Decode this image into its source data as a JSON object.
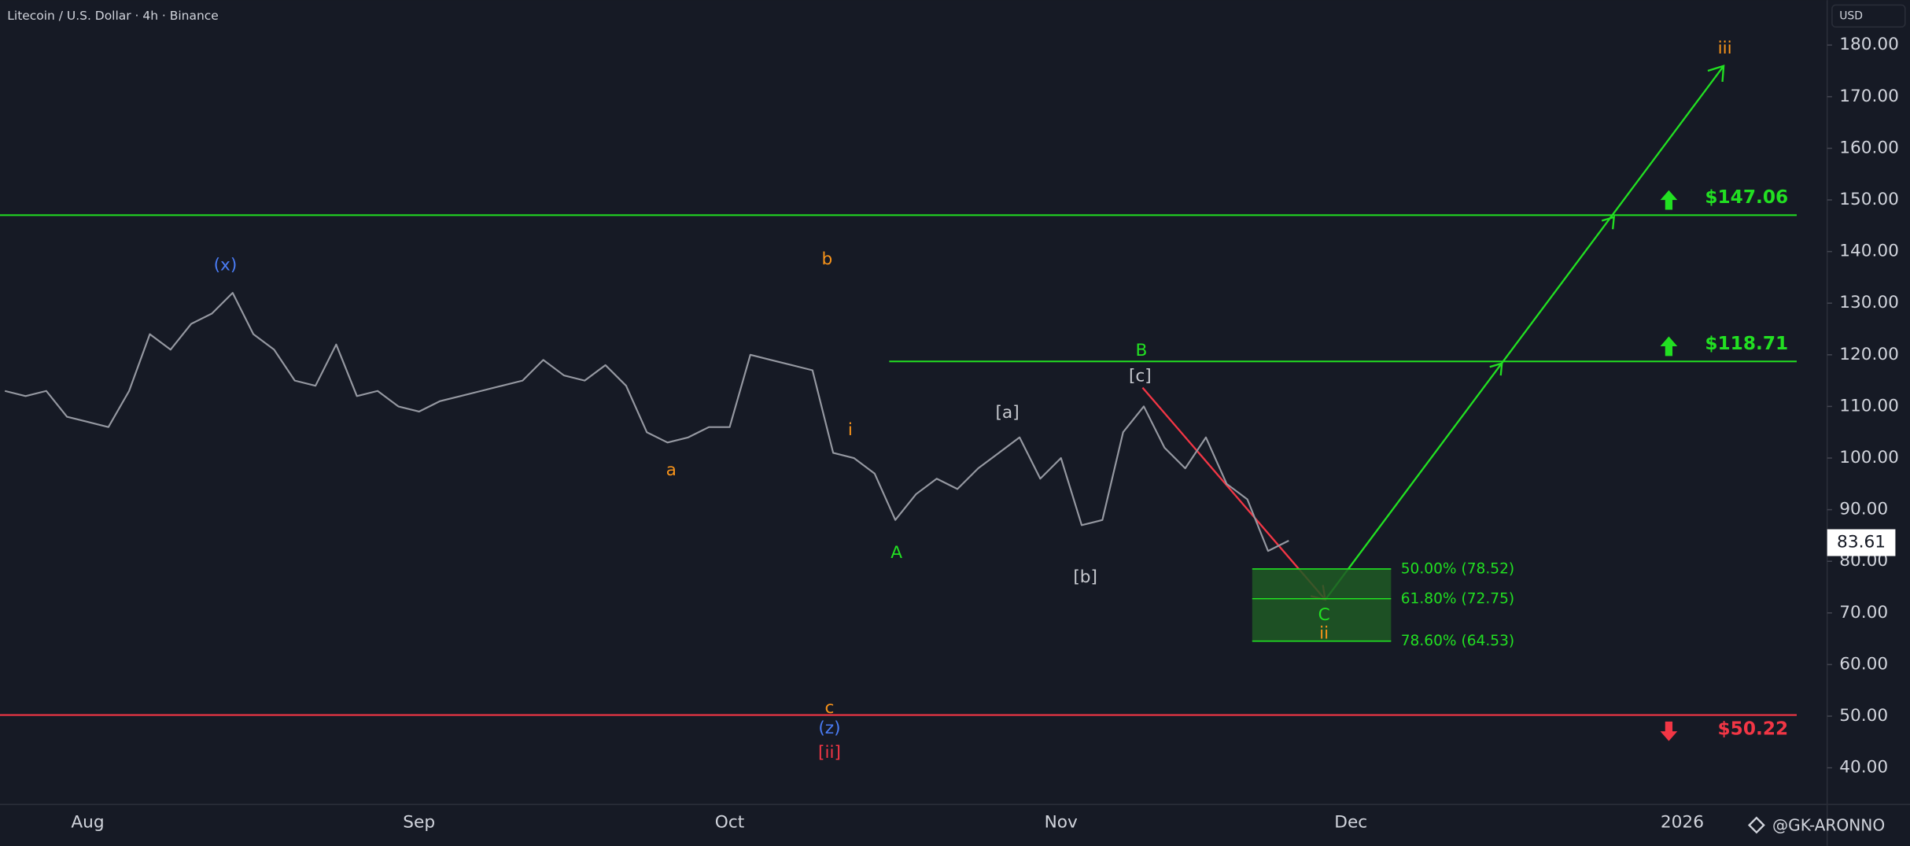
{
  "chart_data": {
    "type": "line",
    "title": "Litecoin / U.S. Dollar · 4h · Binance",
    "currency": "USD",
    "watermark": "@GK-ARONNO",
    "categories": [
      null,
      null,
      null,
      null,
      "Aug",
      null,
      null,
      null,
      null,
      null,
      null,
      null,
      null,
      null,
      null,
      null,
      null,
      null,
      null,
      null,
      "Sep",
      null,
      null,
      null,
      null,
      null,
      null,
      null,
      null,
      null,
      null,
      null,
      null,
      null,
      null,
      "Oct",
      null,
      null,
      null,
      null,
      null,
      null,
      null,
      null,
      null,
      null,
      null,
      null,
      null,
      null,
      null,
      "Nov",
      null,
      null,
      null,
      null,
      null,
      null,
      null,
      null,
      null,
      null,
      null,
      null,
      null,
      "Dec",
      null,
      null,
      null,
      null,
      null,
      null,
      null,
      null,
      null,
      null,
      null,
      null,
      null,
      null,
      null,
      "2026",
      null,
      null,
      null,
      null,
      null,
      null
    ],
    "values": [
      113,
      112,
      113,
      108,
      107,
      106,
      113,
      124,
      121,
      126,
      128,
      132,
      124,
      121,
      115,
      114,
      122,
      112,
      113,
      110,
      109,
      111,
      112,
      113,
      114,
      115,
      119,
      116,
      115,
      118,
      114,
      105,
      103,
      104,
      106,
      106,
      120,
      119,
      118,
      117,
      101,
      100,
      97,
      88,
      93,
      96,
      94,
      98,
      101,
      104,
      96,
      100,
      87,
      88,
      105,
      110,
      102,
      98,
      104,
      95,
      92,
      82,
      84,
      null,
      null,
      null,
      null,
      null,
      null,
      null,
      null,
      null,
      null,
      null,
      null,
      null,
      null,
      null,
      null,
      null,
      null,
      null,
      null,
      null,
      null,
      null,
      null,
      null
    ],
    "color": "#9598a1",
    "ylim": [
      32.9,
      188.7
    ],
    "yticks": [
      {
        "value": 40,
        "label": "40.00"
      },
      {
        "value": 50,
        "label": "50.00"
      },
      {
        "value": 60,
        "label": "60.00"
      },
      {
        "value": 70,
        "label": "70.00"
      },
      {
        "value": 80,
        "label": "80.00"
      },
      {
        "value": 90,
        "label": "90.00"
      },
      {
        "value": 100,
        "label": "100.00"
      },
      {
        "value": 110,
        "label": "110.00"
      },
      {
        "value": 120,
        "label": "120.00"
      },
      {
        "value": 130,
        "label": "130.00"
      },
      {
        "value": 140,
        "label": "140.00"
      },
      {
        "value": 150,
        "label": "150.00"
      },
      {
        "value": 160,
        "label": "160.00"
      },
      {
        "value": 170,
        "label": "170.00"
      },
      {
        "value": 180,
        "label": "180.00"
      }
    ],
    "last_price": 83.61,
    "levels": [
      {
        "value": 147.06,
        "label": "$147.06",
        "color": "#22e022"
      },
      {
        "value": 118.71,
        "label": "$118.71",
        "color": "#22e022"
      },
      {
        "value": 50.22,
        "label": "$50.22",
        "color": "#f23645"
      }
    ],
    "fib": [
      {
        "value": 78.52,
        "label": "50.00% (78.52)"
      },
      {
        "value": 72.75,
        "label": "61.80% (72.75)"
      },
      {
        "value": 64.53,
        "label": "78.60% (64.53)"
      }
    ],
    "annotations": [
      {
        "text": "(x)",
        "color": "#4a7cf5"
      },
      {
        "text": "b",
        "color": "#f7931a"
      },
      {
        "text": "a",
        "color": "#f7931a"
      },
      {
        "text": "i",
        "color": "#f7931a"
      },
      {
        "text": "c",
        "color": "#f7931a"
      },
      {
        "text": "(z)",
        "color": "#4a7cf5"
      },
      {
        "text": "[ii]",
        "color": "#f23645"
      },
      {
        "text": "A",
        "color": "#22e022"
      },
      {
        "text": "[a]",
        "color": "#c7c9cf"
      },
      {
        "text": "[b]",
        "color": "#c7c9cf"
      },
      {
        "text": "B",
        "color": "#22e022"
      },
      {
        "text": "[c]",
        "color": "#c7c9cf"
      },
      {
        "text": "C",
        "color": "#22e022"
      },
      {
        "text": "ii",
        "color": "#f7931a"
      },
      {
        "text": "iii",
        "color": "#f7931a"
      }
    ]
  }
}
